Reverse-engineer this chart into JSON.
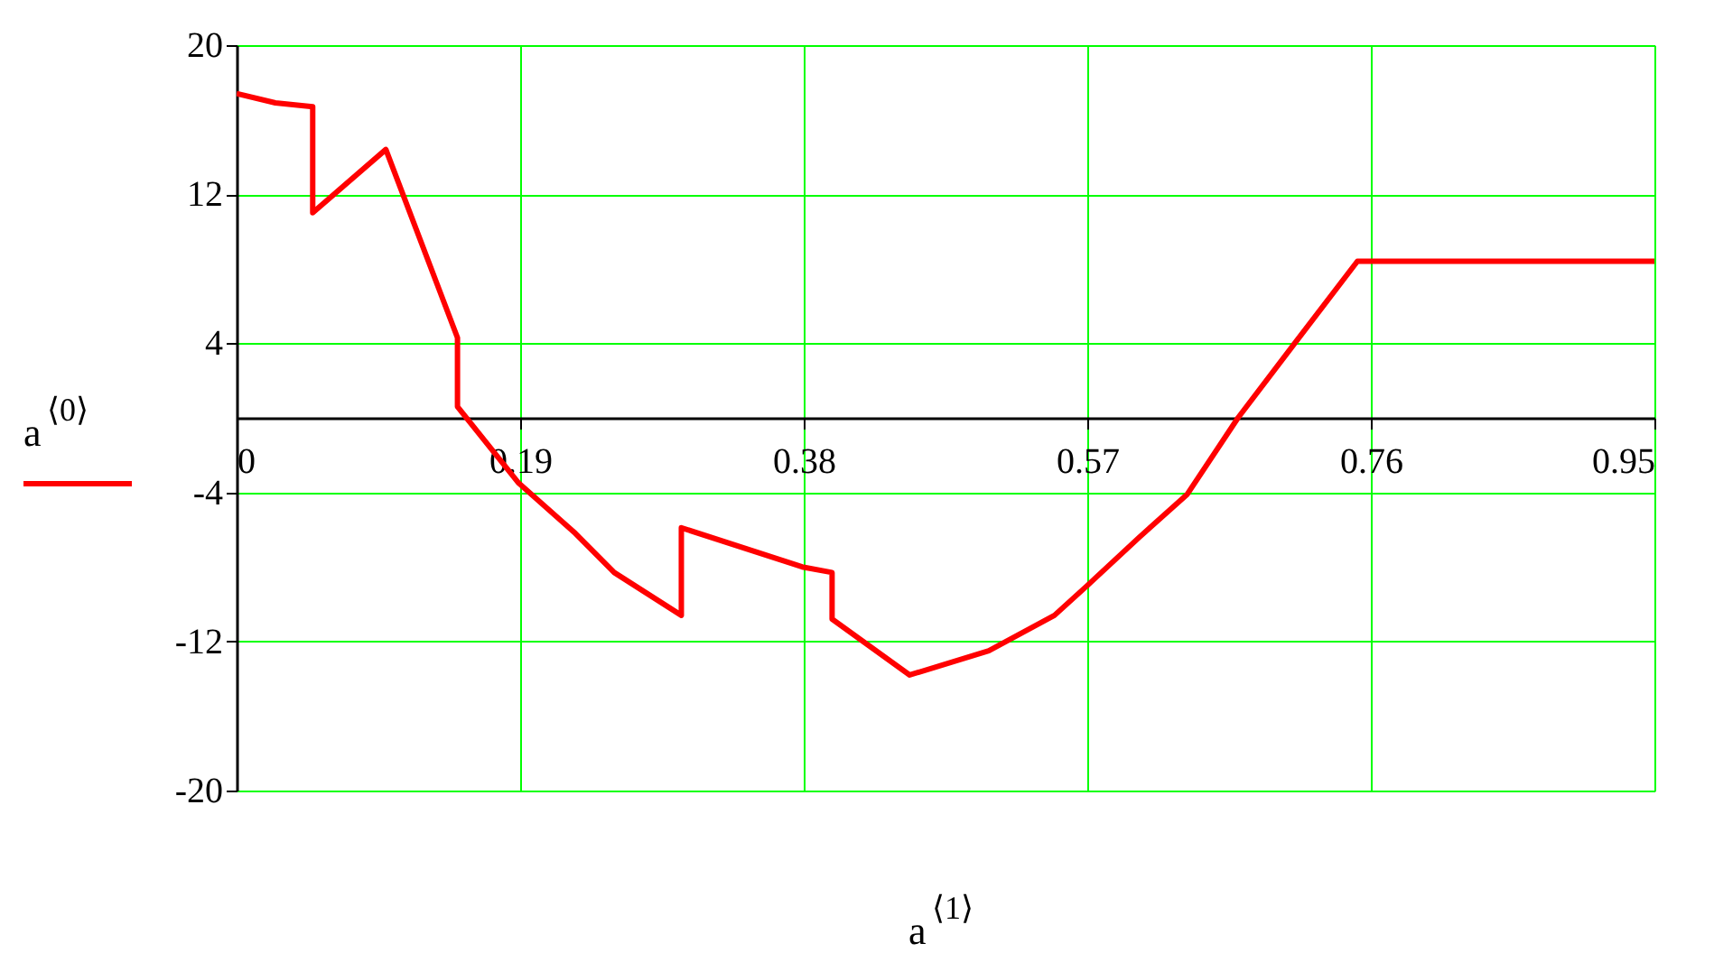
{
  "chart_data": {
    "type": "line",
    "xlabel": "a$^{⟨1⟩}$",
    "ylabel": "a$^{⟨0⟩}$",
    "xlim": [
      0,
      0.95
    ],
    "xticks": [
      0,
      0.19,
      0.38,
      0.57,
      0.76,
      0.95
    ],
    "ylim": [
      -20,
      20
    ],
    "yticks": [
      -20,
      -12,
      -4,
      4,
      12,
      20
    ],
    "grid": true,
    "marker": "none",
    "line_style": "solid",
    "series": [
      {
        "color": "#ff0000",
        "x": [
          0,
          0.026,
          0.051,
          0.051,
          0.1,
          0.148,
          0.148,
          0.189,
          0.227,
          0.253,
          0.298,
          0.298,
          0.379,
          0.399,
          0.399,
          0.451,
          0.504,
          0.548,
          0.57,
          0.605,
          0.637,
          0.671,
          0.709,
          0.751,
          0.95
        ],
        "values": [
          17.4,
          16.9,
          16.7,
          11.0,
          14.4,
          4.3,
          0.6,
          -3.5,
          -6.2,
          -8.3,
          -10.6,
          -5.9,
          -8.0,
          -8.3,
          -10.8,
          -13.8,
          -12.5,
          -10.6,
          -9.0,
          -6.4,
          -4.1,
          0,
          4.0,
          8.4,
          8.4
        ]
      }
    ]
  }
}
